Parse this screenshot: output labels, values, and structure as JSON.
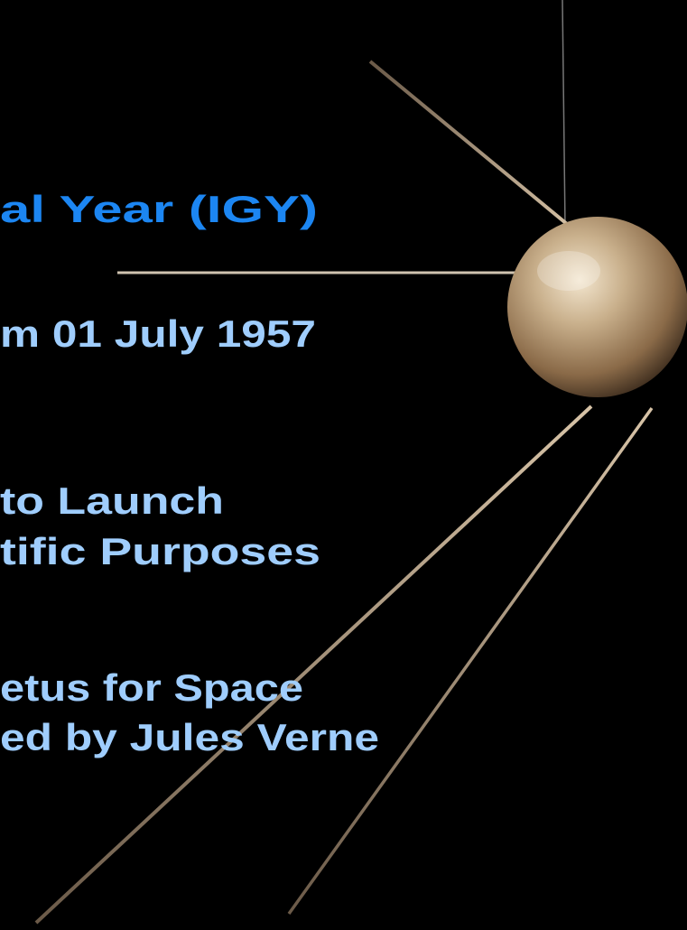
{
  "slide": {
    "lines": [
      {
        "text": "al Year (IGY)"
      },
      {
        "text": "m 01 July 1957"
      },
      {
        "text": "to Launch"
      },
      {
        "text": "tific Purposes"
      },
      {
        "text": "etus for Space"
      },
      {
        "text": "ed by Jules Verne"
      }
    ]
  }
}
